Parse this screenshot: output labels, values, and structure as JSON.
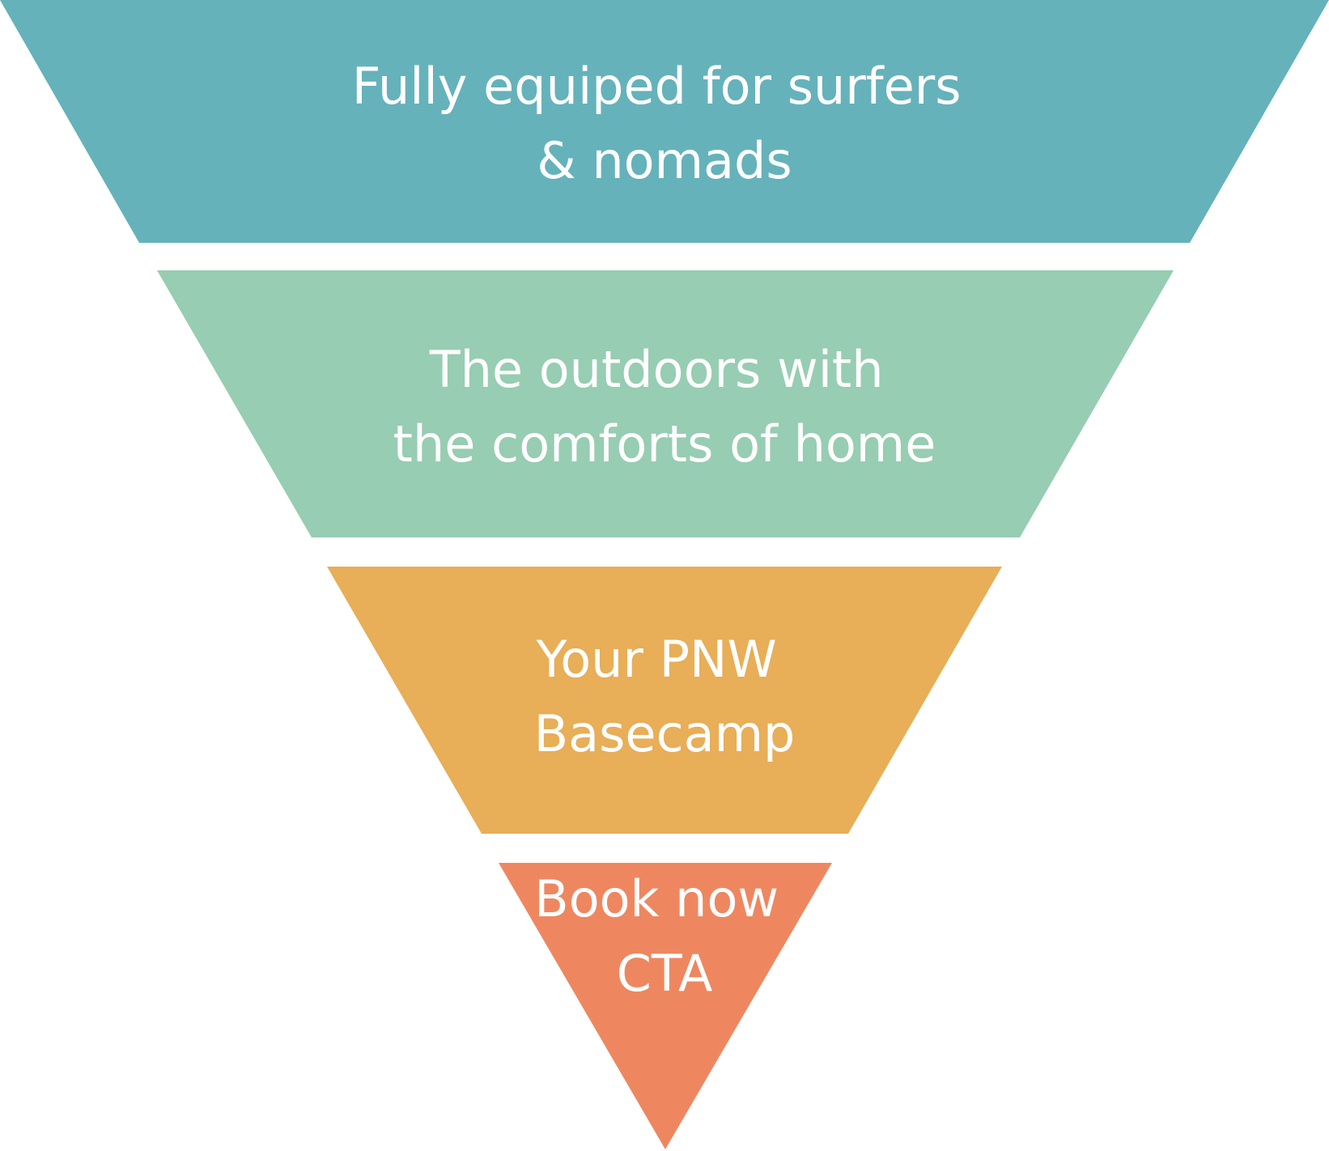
{
  "funnel": {
    "stages": [
      {
        "lines": [
          "Fully equiped for surfers",
          "& nomads"
        ],
        "color": "#65b2bb"
      },
      {
        "lines": [
          "The outdoors with",
          "the comforts of home"
        ],
        "color": "#97cdb2"
      },
      {
        "lines": [
          "Your PNW",
          "Basecamp"
        ],
        "color": "#e8ae58"
      },
      {
        "lines": [
          "Book now",
          "CTA"
        ],
        "color": "#ee8760"
      }
    ]
  }
}
